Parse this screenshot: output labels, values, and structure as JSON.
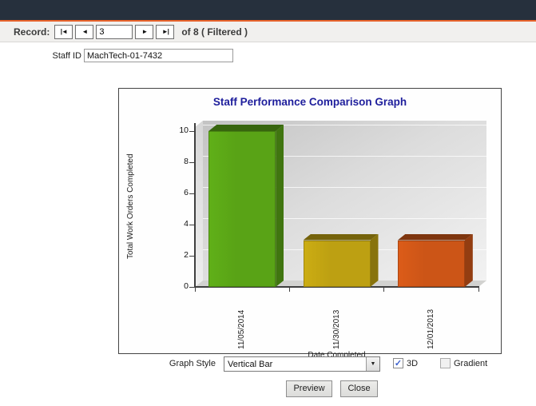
{
  "record_nav": {
    "label": "Record:",
    "buttons": {
      "first": "|◄",
      "prev": "◄",
      "next": "►",
      "last": "►|"
    },
    "current_record": "3",
    "of_text": "of 8 ( Filtered )"
  },
  "staff": {
    "label": "Staff ID",
    "value": "MachTech-01-7432"
  },
  "chart_data": {
    "type": "bar",
    "title": "Staff Performance Comparison Graph",
    "title_color": "#1e1e9c",
    "categories": [
      "11/05/2014",
      "11/30/2013",
      "12/01/2013"
    ],
    "values": [
      10,
      3,
      3
    ],
    "bar_colors": [
      "#59a316",
      "#bda012",
      "#cc5517"
    ],
    "xlabel": "Date Completed",
    "ylabel": "Total Work Orders Completed",
    "ylim": [
      0,
      10
    ],
    "yticks": [
      0,
      2,
      4,
      6,
      8,
      10
    ],
    "grid": true,
    "legend": "none",
    "style": "3D vertical bar"
  },
  "controls": {
    "graph_style_label": "Graph Style",
    "graph_style_value": "Vertical Bar",
    "dropdown_glyph": "▼",
    "checkbox_3d_label": "3D",
    "checkbox_3d_checked": true,
    "checkbox_gradient_label": "Gradient",
    "checkbox_gradient_checked": false,
    "check_glyph": "✓",
    "preview_label": "Preview",
    "close_label": "Close"
  },
  "colors": {
    "topbar": "#26303d",
    "accent": "#e7622b",
    "recordbar_bg": "#f1f0ee"
  }
}
